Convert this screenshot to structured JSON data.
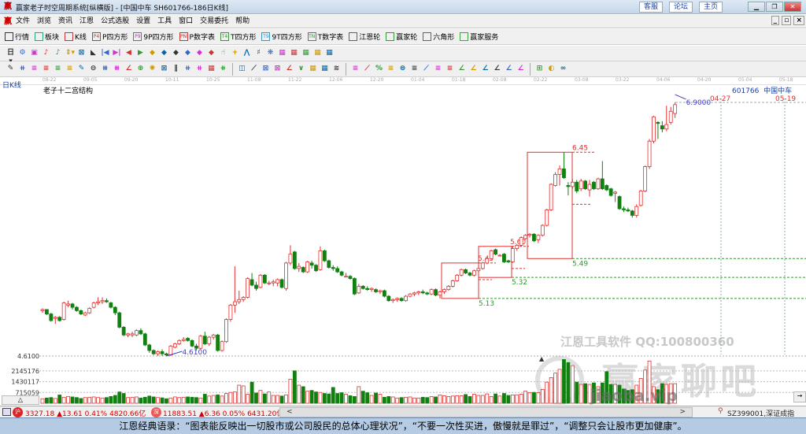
{
  "window": {
    "title": "赢家老子时空周期系统[纵横版] - [中国中车  SH601766-186日K线]",
    "links": [
      "客服",
      "论坛",
      "主页"
    ],
    "controls": [
      "minimize",
      "restore",
      "close"
    ],
    "mdi_controls": [
      "_",
      "▫",
      "×"
    ]
  },
  "menu": [
    "文件",
    "浏览",
    "资讯",
    "江恩",
    "公式选股",
    "设置",
    "工具",
    "窗口",
    "交易委托",
    "帮助"
  ],
  "toolbar1": [
    {
      "label": "行情",
      "icon": "grid-icon",
      "color": "#334"
    },
    {
      "label": "板块",
      "icon": "blocks-icon",
      "color": "#2a7"
    },
    {
      "label": "K线",
      "icon": "candles-icon",
      "color": "#c33"
    },
    {
      "label": "P四方形",
      "icon": "P4",
      "color": "#c33"
    },
    {
      "label": "9P四方形",
      "icon": "P9",
      "color": "#c3c"
    },
    {
      "label": "P数字表",
      "icon": "PN",
      "color": "#c33"
    },
    {
      "label": "T四方形",
      "icon": "T4",
      "color": "#393"
    },
    {
      "label": "9T四方形",
      "icon": "T9",
      "color": "#39c"
    },
    {
      "label": "T数字表",
      "icon": "TN",
      "color": "#393"
    },
    {
      "label": "江恩轮",
      "icon": "wheel-icon",
      "color": "#c33"
    },
    {
      "label": "赢家轮",
      "icon": "wheel2-icon",
      "color": "#393"
    },
    {
      "label": "六角形",
      "icon": "hexagon-icon",
      "color": "#93c"
    },
    {
      "label": "赢家服务",
      "icon": "dollar-icon",
      "color": "#3a3"
    }
  ],
  "toolbar2": [
    "日▾",
    "⚙",
    "▣",
    "♪",
    "♪",
    "⇕▾",
    "⊠",
    "◣",
    "|◀",
    "▶|",
    "◀",
    "▶",
    "◆",
    "◆",
    "◆",
    "◆",
    "◆",
    "◆",
    "☝",
    "+",
    "⋀",
    "♯",
    "❋",
    "▦",
    "▦",
    "▦",
    "▦",
    "▦"
  ],
  "toolbar3": [
    "✎",
    "⧺",
    "≡",
    "≡",
    "≡",
    "≡",
    "✎",
    "⊖",
    "⧻",
    "⧻",
    "∠",
    "⊕",
    "✺",
    "⊠",
    "∥",
    "⧺",
    "⧺",
    "▦",
    "⧺",
    "|",
    "◫",
    "⟋",
    "⊠",
    "⊠",
    "∠",
    "∨",
    "▦",
    "▦",
    "≋",
    "|",
    "≡",
    "⟋",
    "%",
    "≡",
    "⊜",
    "≡",
    "⟋",
    "≡",
    "≡",
    "∠",
    "∠",
    "∠",
    "∠",
    "∠",
    "∠",
    "|",
    "⊞",
    "◐",
    "∞"
  ],
  "chart": {
    "period_label": "日K线",
    "indicator_title": "老子十二宫结构",
    "stock_code": "601766",
    "stock_name": "中国中车",
    "dates": [
      "08-22",
      "09-05",
      "09-20",
      "10-11",
      "10-25",
      "11-08",
      "11-22",
      "12-06",
      "12-20",
      "01-04",
      "01-18",
      "02-08",
      "02-22",
      "03-08",
      "03-22",
      "04-06",
      "04-20",
      "05-04",
      "05-18"
    ],
    "price_axis_label": "4.6100",
    "low_mark": "4.6100",
    "high_mark": "6.9000",
    "future_dates": [
      "04-27",
      "05-19"
    ],
    "box_labels": {
      "b1_top": "5.45",
      "b1_bottom": "5.13",
      "b2_top": "5.60",
      "b2_bottom": "5.32",
      "b3_top": "6.45",
      "b3_bottom": "5.49"
    },
    "volume_axis": [
      "2145176",
      "1430117",
      "715059"
    ],
    "colors": {
      "up": "#e03030",
      "down": "#118011",
      "support": "#2c9a2c",
      "mark": "#4040c0"
    },
    "candles_ohlc": [
      [
        5.02,
        5.04,
        5.0,
        5.03
      ],
      [
        5.03,
        5.03,
        4.98,
        4.99
      ],
      [
        4.99,
        5.0,
        4.92,
        4.93
      ],
      [
        4.95,
        4.97,
        4.9,
        4.96
      ],
      [
        4.96,
        4.97,
        4.92,
        4.93
      ],
      [
        4.94,
        5.1,
        4.93,
        5.09
      ],
      [
        5.07,
        5.11,
        5.05,
        5.08
      ],
      [
        5.08,
        5.09,
        5.03,
        5.05
      ],
      [
        5.05,
        5.06,
        5.01,
        5.02
      ],
      [
        5.02,
        5.03,
        4.98,
        4.99
      ],
      [
        4.98,
        5.01,
        4.97,
        5.0
      ],
      [
        5.0,
        5.05,
        4.99,
        5.04
      ],
      [
        5.05,
        5.1,
        5.04,
        5.09
      ],
      [
        5.09,
        5.14,
        5.07,
        5.1
      ],
      [
        5.1,
        5.14,
        5.08,
        5.11
      ],
      [
        5.11,
        5.13,
        5.09,
        5.1
      ],
      [
        5.09,
        5.1,
        5.04,
        5.05
      ],
      [
        5.05,
        5.06,
        4.98,
        5.0
      ],
      [
        5.0,
        5.01,
        4.86,
        4.87
      ],
      [
        4.87,
        4.88,
        4.79,
        4.8
      ],
      [
        4.8,
        4.82,
        4.78,
        4.81
      ],
      [
        4.8,
        4.83,
        4.78,
        4.81
      ],
      [
        4.8,
        4.85,
        4.79,
        4.84
      ],
      [
        4.84,
        4.86,
        4.8,
        4.81
      ],
      [
        4.81,
        4.82,
        4.7,
        4.71
      ],
      [
        4.71,
        4.72,
        4.64,
        4.66
      ],
      [
        4.66,
        4.67,
        4.62,
        4.63
      ],
      [
        4.63,
        4.66,
        4.61,
        4.65
      ],
      [
        4.65,
        4.67,
        4.61,
        4.63
      ],
      [
        4.63,
        4.64,
        4.61,
        4.62
      ],
      [
        4.62,
        4.71,
        4.61,
        4.7
      ],
      [
        4.69,
        4.73,
        4.68,
        4.72
      ],
      [
        4.72,
        4.76,
        4.71,
        4.75
      ],
      [
        4.75,
        4.78,
        4.74,
        4.76
      ],
      [
        4.77,
        4.78,
        4.74,
        4.75
      ],
      [
        4.75,
        4.76,
        4.69,
        4.7
      ],
      [
        4.7,
        4.72,
        4.66,
        4.68
      ],
      [
        4.68,
        4.8,
        4.67,
        4.79
      ],
      [
        4.79,
        4.83,
        4.71,
        4.72
      ],
      [
        4.72,
        4.79,
        4.7,
        4.78
      ],
      [
        4.78,
        4.81,
        4.76,
        4.8
      ],
      [
        4.8,
        4.81,
        4.65,
        4.66
      ],
      [
        4.66,
        4.75,
        4.65,
        4.74
      ],
      [
        4.74,
        4.95,
        4.73,
        4.94
      ],
      [
        4.94,
        5.08,
        4.92,
        5.07
      ],
      [
        5.07,
        5.42,
        5.0,
        5.1
      ],
      [
        5.1,
        5.2,
        5.08,
        5.12
      ],
      [
        5.12,
        5.15,
        5.1,
        5.14
      ],
      [
        5.14,
        5.32,
        5.13,
        5.31
      ],
      [
        5.3,
        5.36,
        5.24,
        5.25
      ],
      [
        5.25,
        5.28,
        5.2,
        5.22
      ],
      [
        5.23,
        5.35,
        5.22,
        5.34
      ],
      [
        5.34,
        5.35,
        5.26,
        5.27
      ],
      [
        5.27,
        5.29,
        5.25,
        5.27
      ],
      [
        5.27,
        5.3,
        5.24,
        5.28
      ],
      [
        5.27,
        5.31,
        5.24,
        5.3
      ],
      [
        5.3,
        5.31,
        5.22,
        5.23
      ],
      [
        5.22,
        5.46,
        5.2,
        5.45
      ],
      [
        5.45,
        5.61,
        5.43,
        5.53
      ],
      [
        5.55,
        5.56,
        5.39,
        5.4
      ],
      [
        5.4,
        5.45,
        5.37,
        5.42
      ],
      [
        5.41,
        5.42,
        5.36,
        5.37
      ],
      [
        5.37,
        5.47,
        5.36,
        5.46
      ],
      [
        5.45,
        5.47,
        5.4,
        5.43
      ],
      [
        5.43,
        5.44,
        5.37,
        5.38
      ],
      [
        5.39,
        5.6,
        5.38,
        5.56
      ],
      [
        5.56,
        5.57,
        5.46,
        5.47
      ],
      [
        5.47,
        5.48,
        5.4,
        5.41
      ],
      [
        5.41,
        5.43,
        5.38,
        5.4
      ],
      [
        5.4,
        5.42,
        5.36,
        5.37
      ],
      [
        5.37,
        5.38,
        5.33,
        5.34
      ],
      [
        5.33,
        5.36,
        5.32,
        5.33
      ],
      [
        5.33,
        5.34,
        5.3,
        5.31
      ],
      [
        5.31,
        5.32,
        5.16,
        5.17
      ],
      [
        5.18,
        5.26,
        5.17,
        5.24
      ],
      [
        5.24,
        5.25,
        5.21,
        5.22
      ],
      [
        5.22,
        5.24,
        5.2,
        5.21
      ],
      [
        5.21,
        5.23,
        5.19,
        5.22
      ],
      [
        5.21,
        5.22,
        5.18,
        5.19
      ],
      [
        5.19,
        5.21,
        5.17,
        5.2
      ],
      [
        5.2,
        5.21,
        5.14,
        5.15
      ],
      [
        5.15,
        5.16,
        5.1,
        5.11
      ],
      [
        5.11,
        5.13,
        5.09,
        5.12
      ],
      [
        5.12,
        5.14,
        5.1,
        5.13
      ],
      [
        5.13,
        5.14,
        5.1,
        5.11
      ],
      [
        5.11,
        5.16,
        5.1,
        5.15
      ],
      [
        5.15,
        5.18,
        5.14,
        5.17
      ],
      [
        5.17,
        5.19,
        5.15,
        5.18
      ],
      [
        5.18,
        5.2,
        5.16,
        5.19
      ],
      [
        5.19,
        5.21,
        5.17,
        5.18
      ],
      [
        5.18,
        5.19,
        5.16,
        5.17
      ],
      [
        5.17,
        5.22,
        5.16,
        5.21
      ],
      [
        5.21,
        5.22,
        5.15,
        5.16
      ],
      [
        5.16,
        5.2,
        5.13,
        5.19
      ],
      [
        5.19,
        5.22,
        5.17,
        5.21
      ],
      [
        5.21,
        5.25,
        5.2,
        5.24
      ],
      [
        5.24,
        5.3,
        5.23,
        5.29
      ],
      [
        5.29,
        5.35,
        5.28,
        5.34
      ],
      [
        5.34,
        5.4,
        5.33,
        5.39
      ],
      [
        5.39,
        5.4,
        5.35,
        5.36
      ],
      [
        5.36,
        5.37,
        5.33,
        5.34
      ],
      [
        5.34,
        5.39,
        5.33,
        5.38
      ],
      [
        5.38,
        5.41,
        5.37,
        5.4
      ],
      [
        5.4,
        5.46,
        5.39,
        5.45
      ],
      [
        5.45,
        5.5,
        5.44,
        5.49
      ],
      [
        5.49,
        5.57,
        5.48,
        5.56
      ],
      [
        5.57,
        5.58,
        5.52,
        5.53
      ],
      [
        5.52,
        5.53,
        5.51,
        5.52
      ],
      [
        5.53,
        5.54,
        5.45,
        5.46
      ],
      [
        5.47,
        5.48,
        5.45,
        5.46
      ],
      [
        5.46,
        5.6,
        5.45,
        5.58
      ],
      [
        5.58,
        5.62,
        5.56,
        5.61
      ],
      [
        5.61,
        5.69,
        5.6,
        5.68
      ],
      [
        5.67,
        5.71,
        5.66,
        5.7
      ],
      [
        5.7,
        5.72,
        5.68,
        5.71
      ],
      [
        5.71,
        5.72,
        5.64,
        5.65
      ],
      [
        5.66,
        5.71,
        5.63,
        5.7
      ],
      [
        5.7,
        5.8,
        5.69,
        5.79
      ],
      [
        5.79,
        5.94,
        5.78,
        5.93
      ],
      [
        5.93,
        6.17,
        5.92,
        6.16
      ],
      [
        6.15,
        6.27,
        6.14,
        6.25
      ],
      [
        6.25,
        6.33,
        6.15,
        6.3
      ],
      [
        6.3,
        6.45,
        6.21,
        6.22
      ],
      [
        6.15,
        6.18,
        6.06,
        6.14
      ],
      [
        6.14,
        6.21,
        6.12,
        6.18
      ],
      [
        6.18,
        6.2,
        6.08,
        6.1
      ],
      [
        6.12,
        6.21,
        6.1,
        6.19
      ],
      [
        6.19,
        6.2,
        6.11,
        6.12
      ],
      [
        6.11,
        6.2,
        6.05,
        6.16
      ],
      [
        6.18,
        6.19,
        6.11,
        6.12
      ],
      [
        6.12,
        6.22,
        6.11,
        6.21
      ],
      [
        6.21,
        6.37,
        6.11,
        6.12
      ],
      [
        6.15,
        6.16,
        6.1,
        6.11
      ],
      [
        6.12,
        6.13,
        6.05,
        6.06
      ],
      [
        6.08,
        6.1,
        6.0,
        6.09
      ],
      [
        6.05,
        6.06,
        5.93,
        5.94
      ],
      [
        5.94,
        5.96,
        5.91,
        5.93
      ],
      [
        5.93,
        5.95,
        5.91,
        5.92
      ],
      [
        5.92,
        5.93,
        5.86,
        5.88
      ],
      [
        5.88,
        5.98,
        5.86,
        5.96
      ],
      [
        5.97,
        6.11,
        5.96,
        6.1
      ],
      [
        6.1,
        6.33,
        6.09,
        6.32
      ],
      [
        6.32,
        6.57,
        6.3,
        6.55
      ],
      [
        6.55,
        6.78,
        6.53,
        6.77
      ],
      [
        6.72,
        6.73,
        6.57,
        6.71
      ],
      [
        6.69,
        6.73,
        6.63,
        6.66
      ],
      [
        6.66,
        6.87,
        6.64,
        6.7
      ],
      [
        6.72,
        6.86,
        6.7,
        6.82
      ],
      [
        6.8,
        6.9,
        6.76,
        6.88
      ]
    ],
    "volumes": [
      300000,
      350000,
      380000,
      320000,
      550000,
      400000,
      450000,
      420000,
      380000,
      320000,
      380000,
      400000,
      420000,
      380000,
      350000,
      380000,
      450000,
      520000,
      750000,
      650000,
      380000,
      400000,
      420000,
      350000,
      400000,
      480000,
      420000,
      380000,
      360000,
      300000,
      350000,
      420000,
      380000,
      400000,
      420000,
      400000,
      380000,
      350000,
      600000,
      480000,
      520000,
      560000,
      480000,
      650000,
      720000,
      750000,
      1200000,
      1150000,
      600000,
      1400000,
      680000,
      850000,
      620000,
      750000,
      520000,
      520000,
      480000,
      560000,
      1600000,
      2150000,
      1200000,
      1100000,
      800000,
      850000,
      750000,
      720000,
      650000,
      620000,
      1050000,
      650000,
      700000,
      600000,
      500000,
      450000,
      1100000,
      800000,
      700000,
      520000,
      680000,
      600000,
      400000,
      450000,
      420000,
      350000,
      380000,
      400000,
      420000,
      350000,
      350000,
      400000,
      380000,
      450000,
      420000,
      550000,
      500000,
      450000,
      480000,
      500000,
      500000,
      580000,
      450000,
      600000,
      520000,
      520000,
      620000,
      450000,
      620000,
      480000,
      650000,
      520000,
      550000,
      560000,
      600000,
      800000,
      700000,
      720000,
      700000,
      920000,
      1400000,
      1700000,
      2000000,
      2250000,
      2900000,
      2700000,
      2500000,
      1400000,
      1250000,
      1300000,
      1250000,
      1350000,
      1100000,
      1350000,
      2100000,
      1250000,
      1250000,
      1200000,
      950000,
      850000,
      900000,
      1200000,
      1650000,
      2200000,
      2800000,
      1100000,
      900000,
      1300000,
      1250000,
      1300000,
      1300000
    ],
    "watermark": {
      "qq": "江恩工具软件  QQ:100800360",
      "logo": "赢家聊吧",
      "url": "jiaoba.vip"
    }
  },
  "status": {
    "sh_badge": "沪",
    "sh": "3327.18 ▲13.61 0.41% 4820.66亿",
    "sz_badge": "深",
    "sz": "11883.51 ▲6.36 0.05% 6431.20亿",
    "index": "SZ399001,深证成指",
    "scroll_left": "<",
    "scroll_right": ">"
  },
  "quote": "江恩经典语录：“图表能反映出一切股市或公司股民的总体心理状况”，“不要一次性买进，傲慢就是罪过”，“调整只会让股市更加健康”。"
}
